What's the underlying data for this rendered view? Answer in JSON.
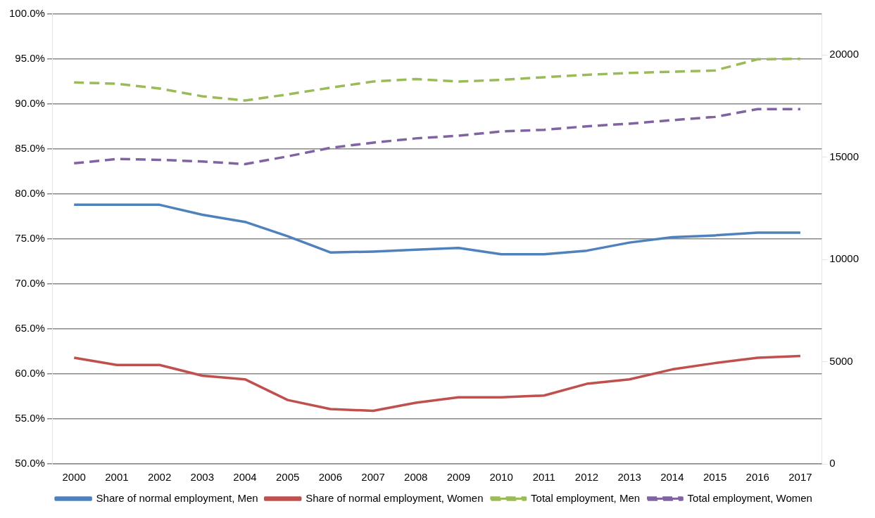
{
  "chart_data": {
    "type": "line",
    "categories": [
      "2000",
      "2001",
      "2002",
      "2003",
      "2004",
      "2005",
      "2006",
      "2007",
      "2008",
      "2009",
      "2010",
      "2011",
      "2012",
      "2013",
      "2014",
      "2015",
      "2016",
      "2017"
    ],
    "series": [
      {
        "name": "Share of normal employment, Men",
        "color": "#4f81bd",
        "line_style": "solid",
        "values": [
          78.8,
          78.8,
          78.8,
          77.7,
          76.9,
          75.3,
          73.5,
          73.6,
          73.8,
          74.0,
          73.3,
          73.3,
          73.7,
          74.6,
          75.2,
          75.4,
          75.7,
          75.7
        ]
      },
      {
        "name": "Share of normal employment, Women",
        "color": "#c0504d",
        "line_style": "solid",
        "values": [
          61.8,
          61.0,
          61.0,
          59.8,
          59.4,
          57.1,
          56.1,
          55.9,
          56.8,
          57.4,
          57.4,
          57.6,
          58.9,
          59.4,
          60.5,
          61.2,
          61.8,
          62.0
        ]
      },
      {
        "name": "Total employment, Men",
        "color": "#9bbb59",
        "line_style": "dashed",
        "axis": "y2",
        "values": [
          18660,
          18590,
          18360,
          17980,
          17770,
          18070,
          18400,
          18700,
          18820,
          18700,
          18780,
          18910,
          19030,
          19120,
          19180,
          19240,
          19790,
          19810
        ]
      },
      {
        "name": "Total employment, Women",
        "color": "#8064a2",
        "line_style": "dashed",
        "axis": "y2",
        "values": [
          14700,
          14910,
          14870,
          14790,
          14660,
          15040,
          15460,
          15710,
          15920,
          16050,
          16260,
          16340,
          16510,
          16640,
          16810,
          16970,
          17350,
          17350
        ]
      }
    ],
    "ylim": [
      50,
      100
    ],
    "yticks": [
      {
        "value": 50,
        "label": "50.0%"
      },
      {
        "value": 55,
        "label": "55.0%"
      },
      {
        "value": 60,
        "label": "60.0%"
      },
      {
        "value": 65,
        "label": "65.0%"
      },
      {
        "value": 70,
        "label": "70.0%"
      },
      {
        "value": 75,
        "label": "75.0%"
      },
      {
        "value": 80,
        "label": "80.0%"
      },
      {
        "value": 85,
        "label": "85.0%"
      },
      {
        "value": 90,
        "label": "90.0%"
      },
      {
        "value": 95,
        "label": "95.0%"
      },
      {
        "value": 100,
        "label": "100.0%"
      }
    ],
    "y2lim": [
      0,
      22000
    ],
    "y2ticks": [
      0,
      5000,
      10000,
      15000,
      20000
    ],
    "grid": "y",
    "legend": "bottom",
    "marker": "none"
  }
}
